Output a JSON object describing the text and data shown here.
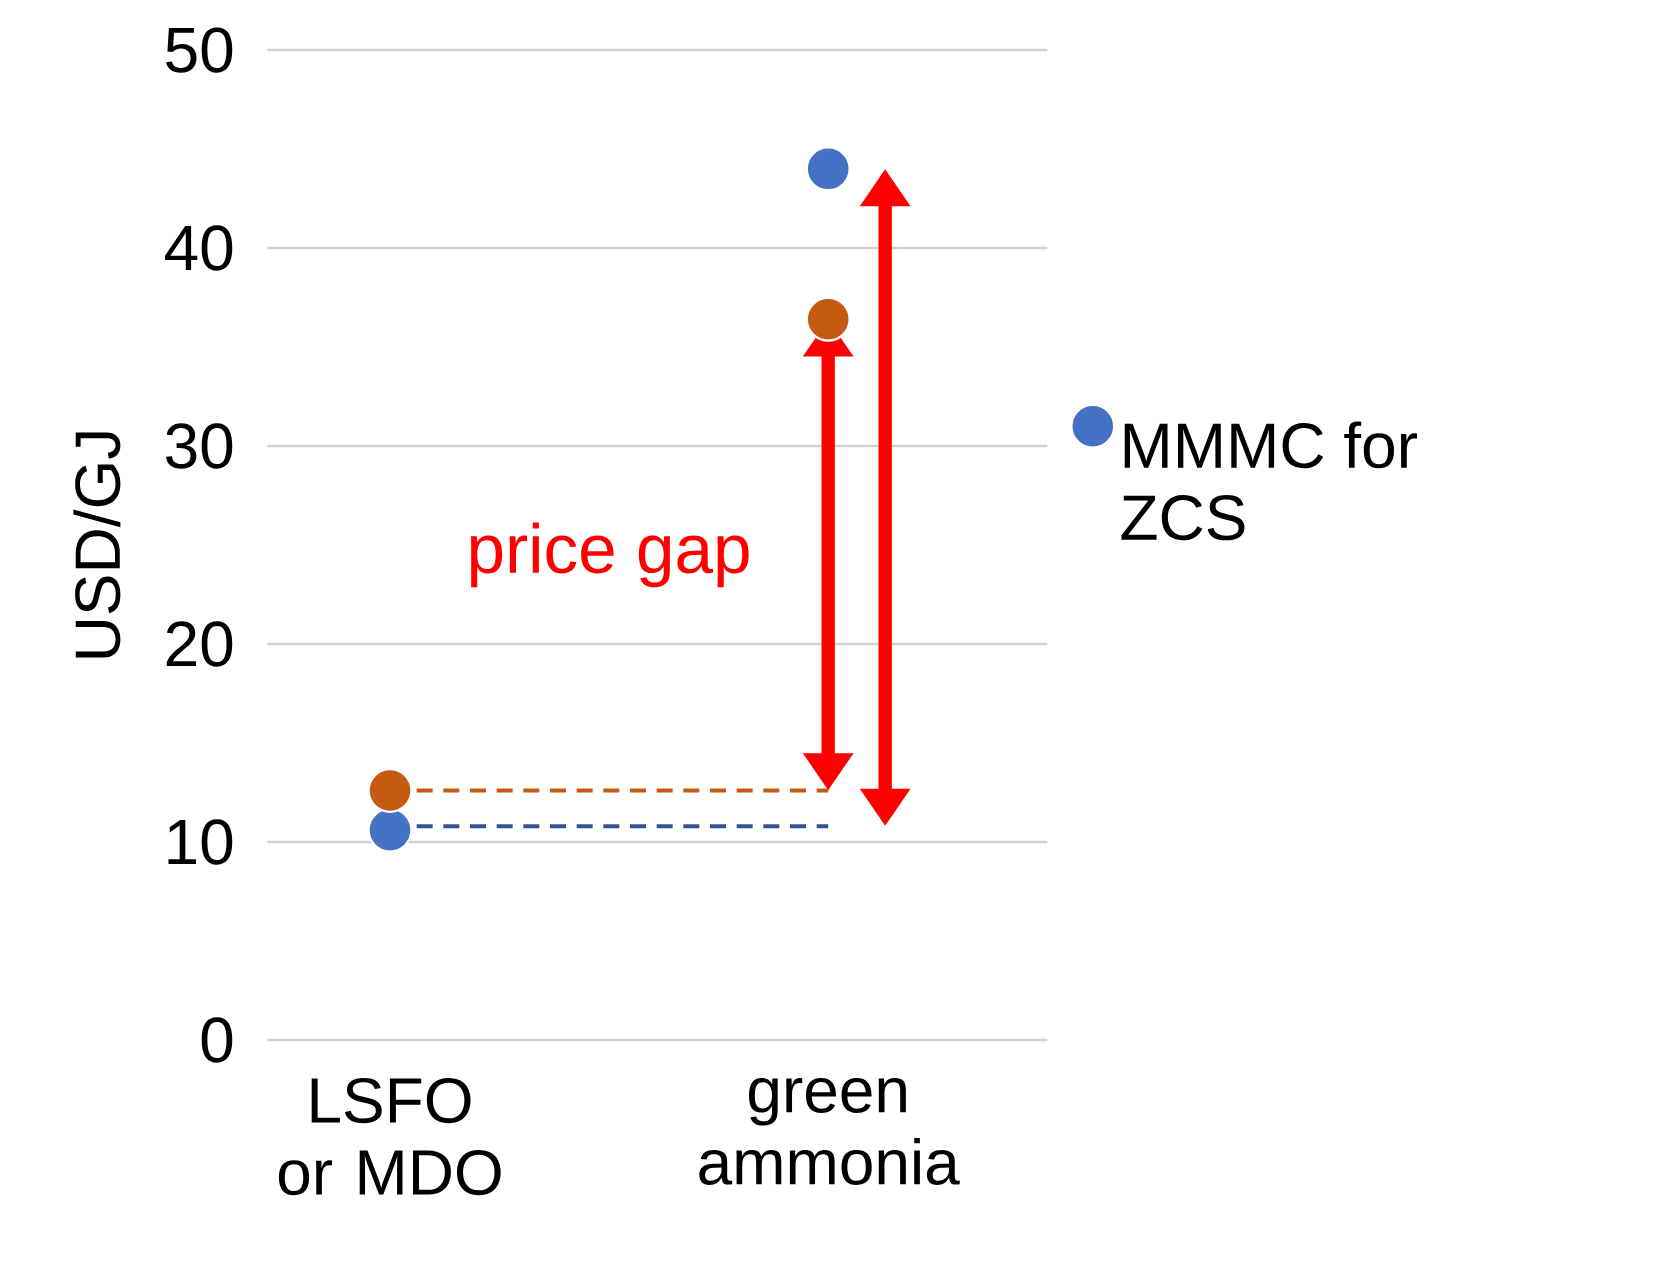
{
  "chart_data": {
    "type": "scatter",
    "ylabel": "USD/GJ",
    "categories": [
      "LSFO or MDO",
      "green ammonia"
    ],
    "series": [
      {
        "name": "MMMC for ZCS",
        "marker": "circle",
        "color": "#4472c4",
        "values": [
          10.6,
          44.0
        ]
      },
      {
        "marker": "circle",
        "color": "#c55a11",
        "values": [
          12.6,
          36.4
        ]
      },
      {
        "type": "line",
        "line_style": "dashed",
        "marker": "none",
        "color": "#2f5597",
        "values": [
          10.8,
          10.8
        ]
      },
      {
        "type": "line",
        "line_style": "dashed",
        "marker": "none",
        "color": "#c55a11",
        "values": [
          12.6,
          12.6
        ]
      }
    ],
    "ylim": [
      0,
      50
    ],
    "yticks": [
      0,
      10,
      20,
      30,
      40,
      50
    ],
    "grid": "y",
    "legend": "right",
    "annotations": [
      "price gap"
    ]
  }
}
